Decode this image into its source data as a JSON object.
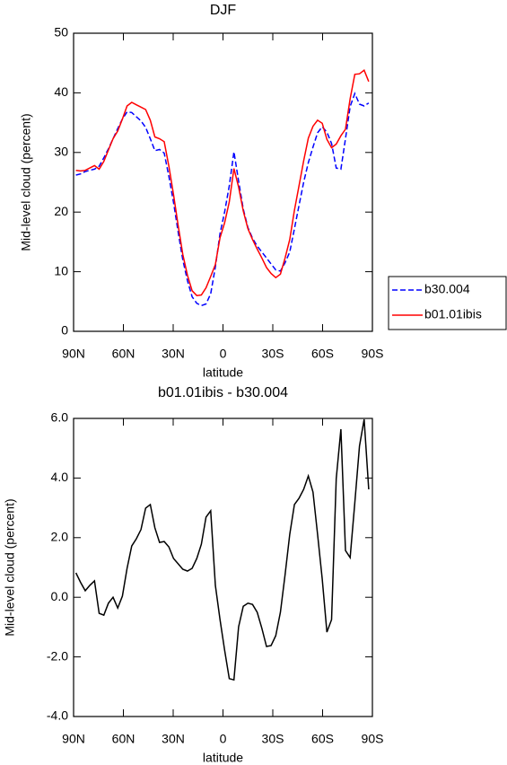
{
  "chart_data": [
    {
      "type": "line",
      "title": "DJF",
      "y_label": "Mid-level cloud (percent)",
      "x_label": "latitude",
      "x": [
        88.6,
        85.8,
        83.0,
        80.2,
        77.4,
        74.6,
        71.8,
        69.0,
        66.2,
        63.4,
        60.6,
        57.8,
        55.0,
        52.2,
        49.4,
        46.6,
        43.8,
        41.0,
        38.2,
        35.4,
        32.6,
        29.8,
        27.0,
        24.2,
        21.4,
        18.6,
        15.8,
        13.0,
        10.2,
        7.4,
        4.6,
        1.8,
        -1.0,
        -3.8,
        -6.6,
        -9.4,
        -12.2,
        -15.0,
        -17.8,
        -20.6,
        -23.4,
        -26.2,
        -29.0,
        -31.8,
        -34.6,
        -37.4,
        -40.2,
        -43.0,
        -45.8,
        -48.6,
        -51.4,
        -54.2,
        -57.0,
        -59.8,
        -62.6,
        -65.4,
        -68.2,
        -71.0,
        -73.8,
        -76.6,
        -79.4,
        -82.2,
        -85.0,
        -87.8
      ],
      "xlim": [
        90,
        -90
      ],
      "xticks": [
        {
          "value": 90,
          "label": "90N"
        },
        {
          "value": 60,
          "label": "60N"
        },
        {
          "value": 30,
          "label": "30N"
        },
        0,
        {
          "value": -30,
          "label": "30S"
        },
        {
          "value": -60,
          "label": "60S"
        },
        {
          "value": -90,
          "label": "90S"
        }
      ],
      "ylim": [
        0,
        50
      ],
      "yticks": [
        0,
        10,
        20,
        30,
        40,
        50
      ],
      "legend": "right",
      "series": [
        {
          "name": "b30.004",
          "color": "#0000ff",
          "dashed": true,
          "values": [
            26.2,
            26.4,
            26.8,
            27.0,
            27.2,
            27.7,
            29.1,
            30.6,
            32.3,
            34.0,
            35.6,
            36.8,
            36.7,
            36.0,
            35.3,
            34.2,
            32.3,
            30.3,
            30.5,
            29.9,
            26.0,
            21.6,
            16.6,
            12.0,
            8.5,
            5.8,
            4.7,
            4.3,
            4.6,
            6.3,
            10.8,
            16.4,
            20.0,
            24.4,
            30.1,
            25.2,
            20.5,
            17.4,
            15.6,
            14.3,
            13.3,
            12.3,
            11.3,
            10.3,
            10.1,
            11.5,
            13.3,
            17.2,
            21.1,
            25.0,
            28.3,
            30.9,
            33.3,
            34.3,
            33.4,
            31.5,
            27.4,
            27.2,
            32.3,
            37.7,
            39.9,
            38.1,
            37.8,
            38.3
          ]
        },
        {
          "name": "b01.01ibis",
          "color": "#ff0000",
          "dashed": false,
          "values": [
            27.0,
            26.9,
            27.0,
            27.4,
            27.8,
            27.2,
            28.5,
            30.4,
            32.3,
            33.6,
            35.6,
            37.8,
            38.4,
            38.0,
            37.6,
            37.2,
            35.4,
            32.6,
            32.3,
            31.8,
            27.7,
            22.9,
            17.7,
            12.9,
            9.4,
            6.8,
            6.0,
            6.1,
            7.3,
            9.2,
            11.2,
            15.7,
            18.2,
            21.7,
            27.3,
            24.2,
            20.2,
            17.2,
            15.4,
            13.8,
            12.3,
            10.7,
            9.7,
            9.0,
            9.6,
            12.3,
            15.4,
            20.3,
            24.4,
            28.6,
            32.4,
            34.4,
            35.4,
            34.9,
            32.2,
            30.8,
            31.4,
            32.8,
            33.9,
            39.0,
            43.1,
            43.2,
            43.8,
            41.9
          ]
        }
      ]
    },
    {
      "type": "line",
      "title": "b01.01ibis - b30.004",
      "y_label": "Mid-level cloud (percent)",
      "x_label": "latitude",
      "x": [
        88.6,
        85.8,
        83.0,
        80.2,
        77.4,
        74.6,
        71.8,
        69.0,
        66.2,
        63.4,
        60.6,
        57.8,
        55.0,
        52.2,
        49.4,
        46.6,
        43.8,
        41.0,
        38.2,
        35.4,
        32.6,
        29.8,
        27.0,
        24.2,
        21.4,
        18.6,
        15.8,
        13.0,
        10.2,
        7.4,
        4.6,
        1.8,
        -1.0,
        -3.8,
        -6.6,
        -9.4,
        -12.2,
        -15.0,
        -17.8,
        -20.6,
        -23.4,
        -26.2,
        -29.0,
        -31.8,
        -34.6,
        -37.4,
        -40.2,
        -43.0,
        -45.8,
        -48.6,
        -51.4,
        -54.2,
        -57.0,
        -59.8,
        -62.6,
        -65.4,
        -68.2,
        -71.0,
        -73.8,
        -76.6,
        -79.4,
        -82.2,
        -85.0,
        -87.8
      ],
      "xlim": [
        90,
        -90
      ],
      "xticks": [
        {
          "value": 90,
          "label": "90N"
        },
        {
          "value": 60,
          "label": "60N"
        },
        {
          "value": 30,
          "label": "30N"
        },
        0,
        {
          "value": -30,
          "label": "30S"
        },
        {
          "value": -60,
          "label": "60S"
        },
        {
          "value": -90,
          "label": "90S"
        }
      ],
      "ylim": [
        -4,
        6
      ],
      "yticks": [
        {
          "value": -4,
          "label": "-4.0"
        },
        {
          "value": -2,
          "label": "-2.0"
        },
        {
          "value": 0,
          "label": "0.0"
        },
        {
          "value": 2,
          "label": "2.0"
        },
        {
          "value": 4,
          "label": "4.0"
        },
        {
          "value": 6,
          "label": "6.0"
        }
      ],
      "color": "#000000",
      "values": [
        0.82,
        0.5,
        0.22,
        0.4,
        0.55,
        -0.54,
        -0.6,
        -0.2,
        0,
        -0.36,
        0.04,
        0.97,
        1.72,
        1.96,
        2.27,
        2.99,
        3.11,
        2.33,
        1.84,
        1.87,
        1.69,
        1.3,
        1.12,
        0.94,
        0.88,
        0.97,
        1.3,
        1.78,
        2.69,
        2.9,
        0.4,
        -0.75,
        -1.77,
        -2.73,
        -2.77,
        -0.99,
        -0.3,
        -0.2,
        -0.24,
        -0.5,
        -1.04,
        -1.65,
        -1.62,
        -1.29,
        -0.5,
        0.76,
        2.11,
        3.11,
        3.32,
        3.62,
        4.07,
        3.53,
        2.11,
        0.61,
        -1.17,
        -0.75,
        3.98,
        5.64,
        1.57,
        1.33,
        3.17,
        5.07,
        5.97,
        3.62
      ]
    }
  ]
}
